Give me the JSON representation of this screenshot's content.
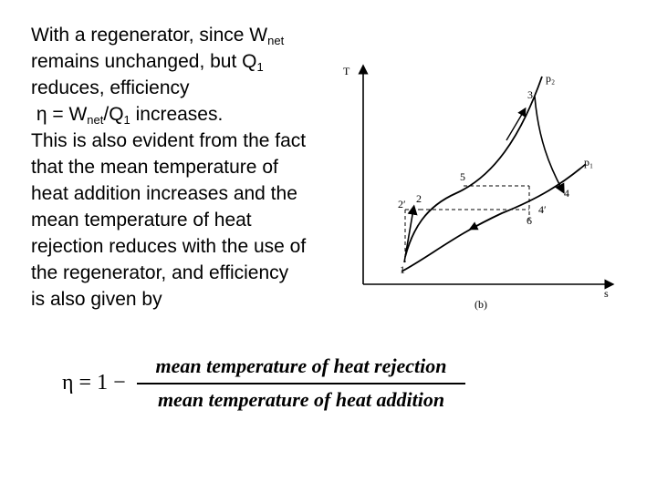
{
  "text": {
    "line1": "With a regenerator, since W",
    "line1_sub": "net",
    "line2": "remains unchanged, but Q",
    "line2_sub": "1",
    "line3": "reduces, efficiency",
    "line4_pre": " η = W",
    "line4_sub1": "net",
    "line4_mid": "/Q",
    "line4_sub2": "1",
    "line4_post": " increases.",
    "line5": "This is also evident from the fact",
    "line6": "that the mean temperature of",
    "line7": "heat addition increases and the",
    "line8": "mean temperature of heat",
    "line9": "rejection reduces with the use of",
    "line10": "the regenerator, and efficiency",
    "line11": "is also given by"
  },
  "diagram": {
    "y_axis_label": "T",
    "x_axis_label": "s",
    "caption": "(b)",
    "isobar_high": "p₂",
    "isobar_low": "p₁",
    "points": {
      "p1": "1",
      "p2": "2",
      "p2prime": "2′",
      "p3": "3",
      "p4": "4",
      "p4prime": "4′",
      "p5": "5",
      "p6": "6"
    }
  },
  "formula": {
    "lhs": "η = 1 −",
    "numerator": "mean temperature of heat rejection",
    "denominator": "mean temperature of heat addition"
  }
}
